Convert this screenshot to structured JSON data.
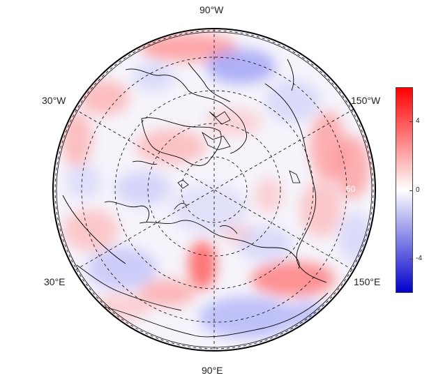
{
  "map": {
    "projection": "north-polar-stereographic",
    "field": "temperature-anomaly",
    "grid": {
      "latitude_circles_visible": 6,
      "meridian_spokes_visible": 6
    },
    "meridian_labels": {
      "top": "90°W",
      "upper_left": "30°W",
      "upper_right": "150°W",
      "lower_left": "30°E",
      "lower_right": "150°E",
      "bottom": "90°E"
    },
    "inner_label": "60",
    "land_outline_color": "#000000",
    "gridline_color": "#000000"
  },
  "colorbar": {
    "min": -6,
    "max": 6,
    "ticks": [
      {
        "value": 4,
        "label": "4"
      },
      {
        "value": 0,
        "label": "0"
      },
      {
        "value": -4,
        "label": "-4"
      }
    ],
    "color_high": "#ff0000",
    "color_mid": "#ffffff",
    "color_low": "#0000cc"
  }
}
